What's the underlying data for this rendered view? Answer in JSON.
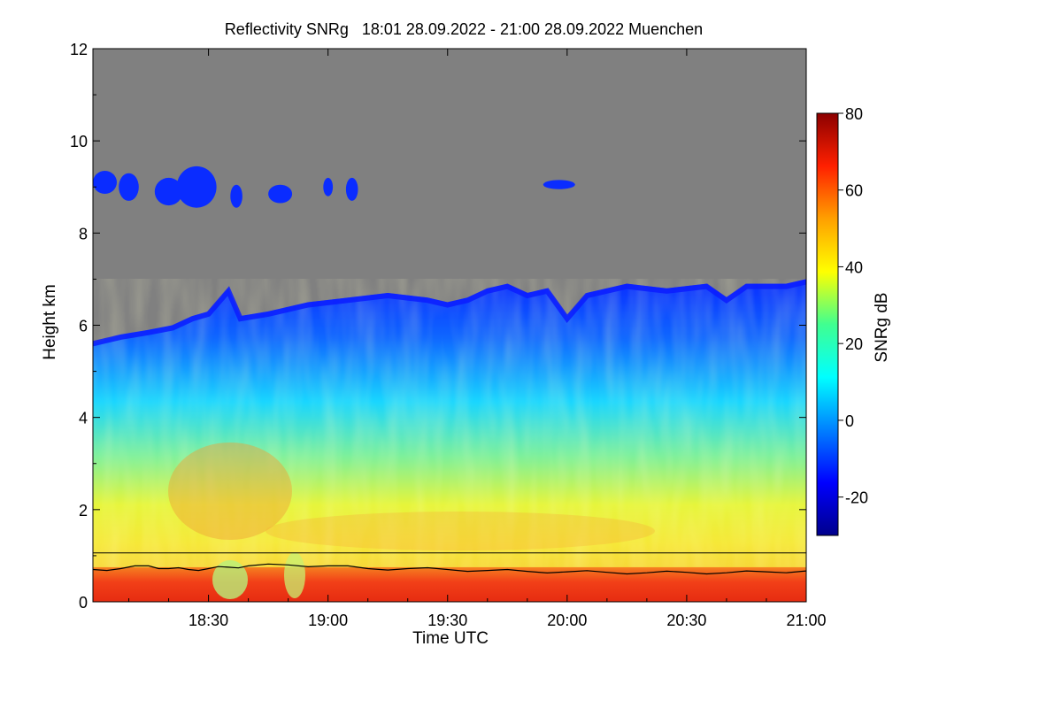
{
  "chart_data": {
    "type": "heatmap",
    "title": "Reflectivity SNRg   18:01 28.09.2022 - 21:00 28.09.2022 Muenchen",
    "xlabel": "Time UTC",
    "ylabel": "Height km",
    "colorbar_label": "SNRg dB",
    "xlim": [
      "18:01",
      "21:00"
    ],
    "xlim_minutes": [
      1081,
      1260
    ],
    "ylim": [
      0,
      12
    ],
    "x_ticks": [
      {
        "label": "18:30",
        "minute": 1110
      },
      {
        "label": "19:00",
        "minute": 1140
      },
      {
        "label": "19:30",
        "minute": 1170
      },
      {
        "label": "20:00",
        "minute": 1200
      },
      {
        "label": "20:30",
        "minute": 1230
      },
      {
        "label": "21:00",
        "minute": 1260
      }
    ],
    "y_ticks": [
      "0",
      "2",
      "4",
      "6",
      "8",
      "10",
      "12"
    ],
    "colorbar_range": [
      -30,
      80
    ],
    "colorbar_ticks": [
      "-20",
      "0",
      "20",
      "40",
      "60",
      "80"
    ],
    "colormap": [
      "#00008b",
      "#0000ff",
      "#0080ff",
      "#00ffff",
      "#40ff90",
      "#ffff00",
      "#ffa000",
      "#ff2000",
      "#8b0000"
    ],
    "no_signal_color": "#808080",
    "cloud_top_km": [
      {
        "t": 1081,
        "h": 5.6
      },
      {
        "t": 1088,
        "h": 5.8
      },
      {
        "t": 1095,
        "h": 5.9
      },
      {
        "t": 1101,
        "h": 6.0
      },
      {
        "t": 1106,
        "h": 6.2
      },
      {
        "t": 1110,
        "h": 6.3
      },
      {
        "t": 1115,
        "h": 6.8
      },
      {
        "t": 1118,
        "h": 6.2
      },
      {
        "t": 1125,
        "h": 6.3
      },
      {
        "t": 1135,
        "h": 6.5
      },
      {
        "t": 1145,
        "h": 6.6
      },
      {
        "t": 1155,
        "h": 6.7
      },
      {
        "t": 1165,
        "h": 6.6
      },
      {
        "t": 1170,
        "h": 6.5
      },
      {
        "t": 1175,
        "h": 6.6
      },
      {
        "t": 1180,
        "h": 6.8
      },
      {
        "t": 1185,
        "h": 6.9
      },
      {
        "t": 1190,
        "h": 6.7
      },
      {
        "t": 1195,
        "h": 6.8
      },
      {
        "t": 1200,
        "h": 6.2
      },
      {
        "t": 1205,
        "h": 6.7
      },
      {
        "t": 1215,
        "h": 6.9
      },
      {
        "t": 1225,
        "h": 6.8
      },
      {
        "t": 1235,
        "h": 6.9
      },
      {
        "t": 1240,
        "h": 6.6
      },
      {
        "t": 1245,
        "h": 6.9
      },
      {
        "t": 1255,
        "h": 6.9
      },
      {
        "t": 1260,
        "h": 7.0
      }
    ],
    "upper_cloud_patches": [
      {
        "t": 1084,
        "h": 9.1,
        "dt": 3.0,
        "dh": 0.25
      },
      {
        "t": 1090,
        "h": 9.0,
        "dt": 2.5,
        "dh": 0.3
      },
      {
        "t": 1100,
        "h": 8.9,
        "dt": 3.5,
        "dh": 0.3
      },
      {
        "t": 1107,
        "h": 9.0,
        "dt": 5.0,
        "dh": 0.45
      },
      {
        "t": 1117,
        "h": 8.8,
        "dt": 1.5,
        "dh": 0.25
      },
      {
        "t": 1128,
        "h": 8.85,
        "dt": 3.0,
        "dh": 0.2
      },
      {
        "t": 1140,
        "h": 9.0,
        "dt": 1.2,
        "dh": 0.2
      },
      {
        "t": 1146,
        "h": 8.95,
        "dt": 1.5,
        "dh": 0.25
      },
      {
        "t": 1198,
        "h": 9.05,
        "dt": 4.0,
        "dh": 0.1
      }
    ],
    "boundary_layer_km": [
      {
        "t": 1081,
        "h": 0.7
      },
      {
        "t": 1088,
        "h": 0.72
      },
      {
        "t": 1095,
        "h": 0.78
      },
      {
        "t": 1100,
        "h": 0.72
      },
      {
        "t": 1105,
        "h": 0.7
      },
      {
        "t": 1110,
        "h": 0.72
      },
      {
        "t": 1115,
        "h": 0.75
      },
      {
        "t": 1120,
        "h": 0.78
      },
      {
        "t": 1130,
        "h": 0.8
      },
      {
        "t": 1140,
        "h": 0.78
      },
      {
        "t": 1150,
        "h": 0.72
      },
      {
        "t": 1160,
        "h": 0.72
      },
      {
        "t": 1170,
        "h": 0.7
      },
      {
        "t": 1180,
        "h": 0.68
      },
      {
        "t": 1190,
        "h": 0.66
      },
      {
        "t": 1200,
        "h": 0.65
      },
      {
        "t": 1210,
        "h": 0.64
      },
      {
        "t": 1220,
        "h": 0.63
      },
      {
        "t": 1230,
        "h": 0.64
      },
      {
        "t": 1240,
        "h": 0.63
      },
      {
        "t": 1250,
        "h": 0.65
      },
      {
        "t": 1260,
        "h": 0.67
      }
    ],
    "reference_line_km": 1.06
  }
}
